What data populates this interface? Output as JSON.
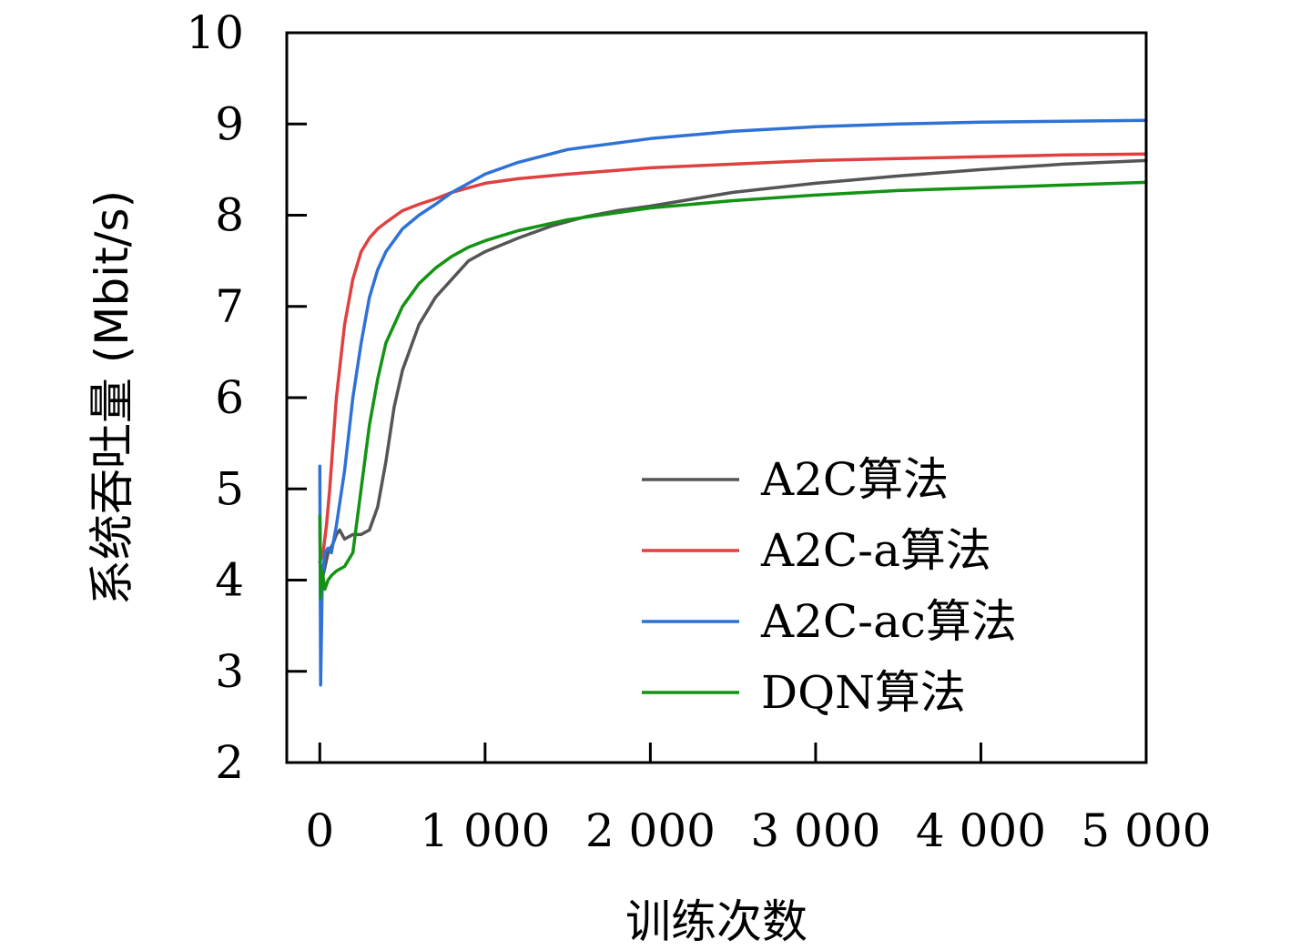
{
  "chart_data": {
    "type": "line",
    "xlabel": "训练次数",
    "ylabel": "系统吞吐量 (Mbit/s)",
    "xlim": [
      -200,
      5000
    ],
    "ylim": [
      2,
      10
    ],
    "xticks": [
      0,
      1000,
      2000,
      3000,
      4000,
      5000
    ],
    "xtick_labels": [
      "0",
      "1 000",
      "2 000",
      "3 000",
      "4 000",
      "5 000"
    ],
    "yticks": [
      2,
      3,
      4,
      5,
      6,
      7,
      8,
      9,
      10
    ],
    "ytick_labels": [
      "2",
      "3",
      "4",
      "5",
      "6",
      "7",
      "8",
      "9",
      "10"
    ],
    "grid": false,
    "legend_position": "bottom-right",
    "series": [
      {
        "name": "A2C算法",
        "color": "#555555",
        "x": [
          0,
          20,
          50,
          80,
          100,
          120,
          150,
          200,
          250,
          300,
          350,
          400,
          450,
          500,
          600,
          700,
          800,
          900,
          1000,
          1200,
          1400,
          1600,
          1800,
          2000,
          2500,
          3000,
          3500,
          4000,
          4500,
          5000
        ],
        "y": [
          4.2,
          4.05,
          4.3,
          4.4,
          4.5,
          4.55,
          4.45,
          4.5,
          4.5,
          4.55,
          4.8,
          5.3,
          5.9,
          6.3,
          6.8,
          7.1,
          7.3,
          7.5,
          7.6,
          7.75,
          7.88,
          7.98,
          8.05,
          8.1,
          8.25,
          8.35,
          8.43,
          8.5,
          8.56,
          8.6
        ]
      },
      {
        "name": "A2C-a算法",
        "color": "#e04040",
        "x": [
          0,
          20,
          40,
          60,
          80,
          100,
          150,
          200,
          250,
          300,
          350,
          400,
          500,
          600,
          700,
          800,
          1000,
          1200,
          1500,
          2000,
          2500,
          3000,
          3500,
          4000,
          4500,
          5000
        ],
        "y": [
          4.2,
          4.3,
          4.6,
          5.0,
          5.5,
          6.0,
          6.8,
          7.3,
          7.6,
          7.75,
          7.85,
          7.92,
          8.05,
          8.12,
          8.18,
          8.25,
          8.35,
          8.4,
          8.45,
          8.52,
          8.56,
          8.6,
          8.62,
          8.64,
          8.66,
          8.67
        ]
      },
      {
        "name": "A2C-ac算法",
        "color": "#2f72d6",
        "x": [
          0,
          5,
          15,
          30,
          50,
          70,
          100,
          150,
          200,
          250,
          300,
          350,
          400,
          500,
          600,
          700,
          800,
          1000,
          1200,
          1500,
          2000,
          2500,
          3000,
          3500,
          4000,
          4500,
          5000
        ],
        "y": [
          5.25,
          2.85,
          4.0,
          4.3,
          4.35,
          4.3,
          4.6,
          5.2,
          6.0,
          6.6,
          7.1,
          7.4,
          7.6,
          7.85,
          8.0,
          8.12,
          8.25,
          8.45,
          8.58,
          8.72,
          8.84,
          8.92,
          8.97,
          9.0,
          9.02,
          9.03,
          9.04
        ]
      },
      {
        "name": "DQN算法",
        "color": "#139313",
        "x": [
          0,
          5,
          15,
          30,
          50,
          70,
          100,
          150,
          200,
          250,
          300,
          350,
          400,
          500,
          600,
          700,
          800,
          900,
          1000,
          1200,
          1500,
          2000,
          2500,
          3000,
          3500,
          4000,
          4500,
          5000
        ],
        "y": [
          4.7,
          3.8,
          4.1,
          3.9,
          4.0,
          4.05,
          4.1,
          4.15,
          4.3,
          5.0,
          5.7,
          6.2,
          6.6,
          7.0,
          7.25,
          7.42,
          7.55,
          7.65,
          7.72,
          7.83,
          7.95,
          8.08,
          8.16,
          8.22,
          8.27,
          8.3,
          8.33,
          8.36
        ]
      }
    ]
  }
}
